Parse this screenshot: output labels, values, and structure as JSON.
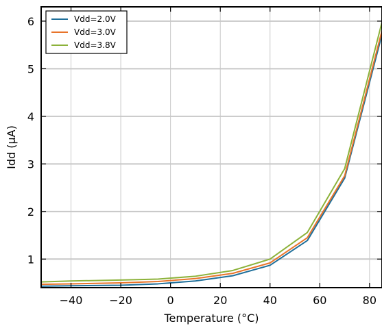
{
  "chart_data": {
    "type": "line",
    "title": "",
    "xlabel": "Temperature (°C)",
    "ylabel": "Idd (µA)",
    "xlim": [
      -52,
      85
    ],
    "ylim": [
      0.4,
      6.3
    ],
    "xticks": [
      -40,
      -20,
      0,
      20,
      40,
      60,
      80
    ],
    "yticks": [
      1,
      2,
      3,
      4,
      5,
      6
    ],
    "xtick_labels": [
      "−40",
      "−20",
      "0",
      "20",
      "40",
      "60",
      "80"
    ],
    "ytick_labels": [
      "1",
      "2",
      "3",
      "4",
      "5",
      "6"
    ],
    "grid": true,
    "legend": "top-left",
    "x": [
      -52,
      -40,
      -20,
      -5,
      10,
      25,
      40,
      55,
      70,
      85
    ],
    "series": [
      {
        "name": "Vdd=2.0V",
        "color": "#1f6f9a",
        "values": [
          0.43,
          0.44,
          0.45,
          0.48,
          0.54,
          0.65,
          0.87,
          1.39,
          2.7,
          5.72
        ]
      },
      {
        "name": "Vdd=3.0V",
        "color": "#e8742a",
        "values": [
          0.47,
          0.48,
          0.5,
          0.53,
          0.59,
          0.7,
          0.92,
          1.45,
          2.75,
          5.8
        ]
      },
      {
        "name": "Vdd=3.8V",
        "color": "#8cb23a",
        "values": [
          0.52,
          0.54,
          0.56,
          0.58,
          0.64,
          0.76,
          1.0,
          1.56,
          2.9,
          5.98
        ]
      }
    ]
  }
}
